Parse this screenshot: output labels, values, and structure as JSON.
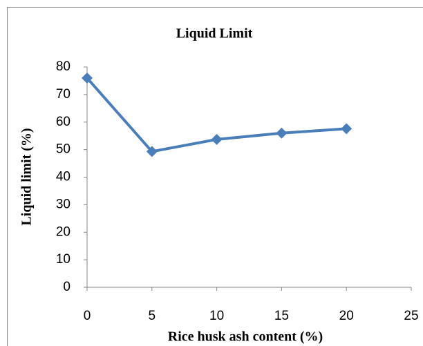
{
  "chart_data": {
    "type": "line",
    "title": "Liquid Limit",
    "x_label": "Rice husk ash content (%)",
    "y_label": "Liquid limit (%)",
    "x": [
      0,
      5,
      10,
      15,
      20
    ],
    "series": [
      {
        "name": "Liquid limit",
        "color": "#4a7ebb",
        "values": [
          76,
          49.3,
          53.7,
          56,
          57.6
        ]
      }
    ],
    "xlim": [
      0,
      25
    ],
    "xticks": [
      0,
      5,
      10,
      15,
      20,
      25
    ],
    "ylim": [
      0,
      80
    ],
    "yticks": [
      0,
      10,
      20,
      30,
      40,
      50,
      60,
      70,
      80
    ],
    "grid": false,
    "marker": "diamond"
  }
}
